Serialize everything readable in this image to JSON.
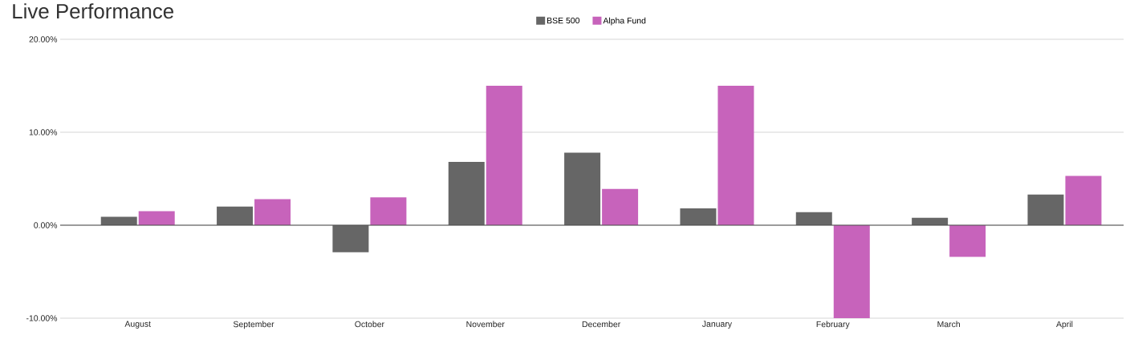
{
  "chart_data": {
    "type": "bar",
    "title": "Live Performance",
    "categories": [
      "August",
      "September",
      "October",
      "November",
      "December",
      "January",
      "February",
      "March",
      "April"
    ],
    "series": [
      {
        "name": "BSE 500",
        "color": "#666666",
        "values": [
          0.9,
          2.0,
          -2.9,
          6.8,
          7.8,
          1.8,
          1.4,
          0.8,
          3.3
        ]
      },
      {
        "name": "Alpha Fund",
        "color": "#c763bb",
        "values": [
          1.5,
          2.8,
          3.0,
          15.0,
          3.9,
          15.0,
          -10.0,
          -3.4,
          5.3
        ]
      }
    ],
    "ylim": [
      -10,
      20
    ],
    "yticks": [
      {
        "value": -10,
        "label": "-10.00%"
      },
      {
        "value": 0,
        "label": "0.00%"
      },
      {
        "value": 10,
        "label": "10.00%"
      },
      {
        "value": 20,
        "label": "20.00%"
      }
    ],
    "grid": "y",
    "legend": "top"
  }
}
